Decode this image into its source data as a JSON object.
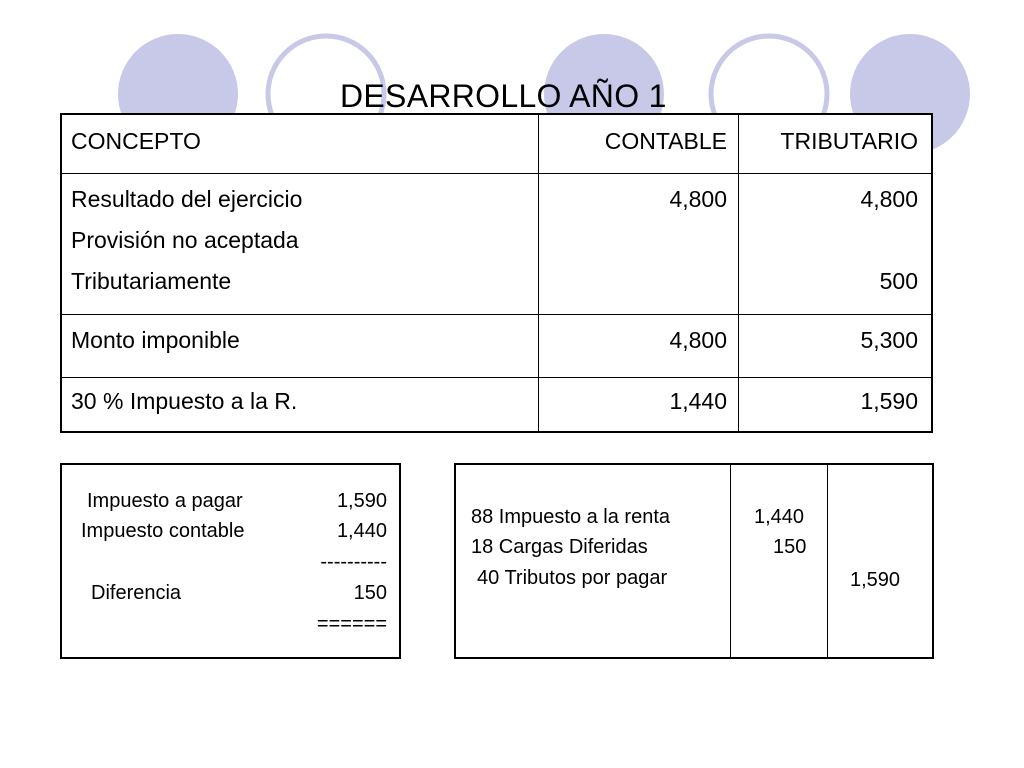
{
  "title": "DESARROLLO AÑO 1",
  "decor": {
    "circle_fill": "#c8c8e8",
    "circle_stroke": "#c8c8e8",
    "ring_stroke": "#c8c8e8"
  },
  "table": {
    "headers": [
      "CONCEPTO",
      "CONTABLE",
      "TRIBUTARIO"
    ],
    "group": {
      "concepts": [
        "Resultado del ejercicio",
        "Provisión no aceptada",
        "Tributariamente"
      ],
      "contable": "4,800",
      "tributario": [
        "4,800",
        "500"
      ]
    },
    "rows": [
      {
        "concepto": "Monto imponible",
        "contable": "4,800",
        "tributario": "5,300"
      },
      {
        "concepto": "30 % Impuesto a la R.",
        "contable": "1,440",
        "tributario": "1,590"
      }
    ]
  },
  "summary": {
    "lines": [
      {
        "label": "Impuesto a pagar",
        "value": "1,590"
      },
      {
        "label": "Impuesto contable",
        "value": "1,440"
      },
      {
        "label": "",
        "value": "----------"
      },
      {
        "label": "Diferencia",
        "value": "150"
      },
      {
        "label": "",
        "value": "======"
      }
    ]
  },
  "journal": {
    "accounts": [
      "88 Impuesto a la renta",
      "18 Cargas Diferidas",
      "40 Tributos por pagar"
    ],
    "debits": [
      "1,440",
      "150"
    ],
    "credit": "1,590"
  }
}
